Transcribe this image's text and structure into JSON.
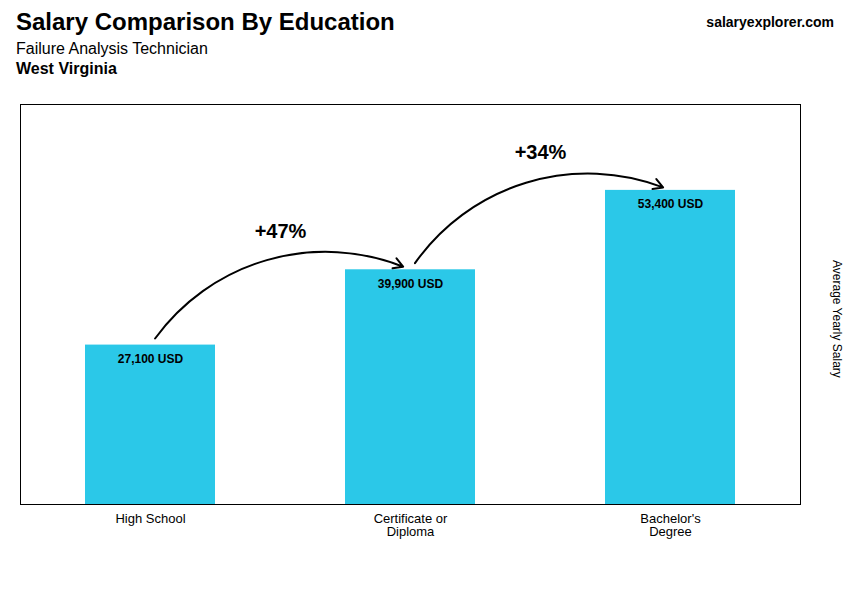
{
  "chart_data": {
    "type": "bar",
    "title": "Salary Comparison By Education",
    "subtitle": "Failure Analysis Technician",
    "y_label": "Average Yearly Salary",
    "categories": [
      "High School",
      "Certificate or\nDiploma",
      "Bachelor's\nDegree"
    ],
    "values": [
      27100,
      39900,
      53400
    ],
    "value_labels": [
      "27,100 USD",
      "39,900 USD",
      "53,400 USD"
    ],
    "data_labels": true,
    "color": "#2bc8e8",
    "ylim": [
      0,
      68000
    ],
    "tick_labels": "x",
    "grid": false,
    "annotations": [
      {
        "text": "West Virginia"
      },
      {
        "text": "salaryexplorer.com"
      },
      {
        "text": "+47%",
        "from": "High School",
        "to": "Certificate or\nDiploma"
      },
      {
        "text": "+34%",
        "from": "Certificate or\nDiploma",
        "to": "Bachelor's\nDegree"
      }
    ]
  }
}
